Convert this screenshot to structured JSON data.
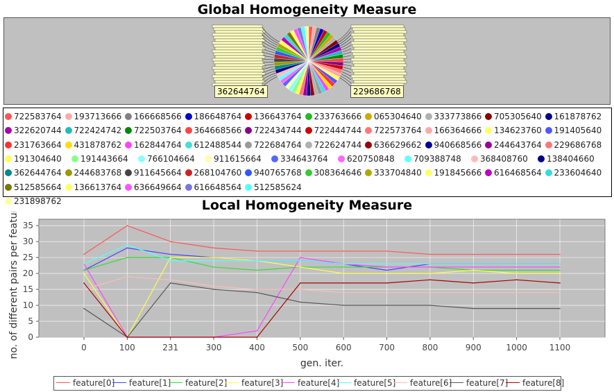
{
  "global": {
    "title": "Global Homogeneity Measure",
    "label_left": "362644764",
    "label_right": "229686768"
  },
  "legend_items": [
    {
      "label": "722583764",
      "color": "#ff5555"
    },
    {
      "label": "193713666",
      "color": "#ffaaaa"
    },
    {
      "label": "166668566",
      "color": "#808080"
    },
    {
      "label": "186648764",
      "color": "#0000cc"
    },
    {
      "label": "136643764",
      "color": "#cc0000"
    },
    {
      "label": "233763666",
      "color": "#22bb22"
    },
    {
      "label": "065304640",
      "color": "#ccaa00"
    },
    {
      "label": "333773866",
      "color": "#b0b0b0"
    },
    {
      "label": "705305640",
      "color": "#880000"
    },
    {
      "label": "161878762",
      "color": "#000088"
    },
    {
      "label": "322620744",
      "color": "#aa00aa"
    },
    {
      "label": "722424742",
      "color": "#22bbbb"
    },
    {
      "label": "722503764",
      "color": "#008800"
    },
    {
      "label": "364668566",
      "color": "#ff4444"
    },
    {
      "label": "722434744",
      "color": "#880088"
    },
    {
      "label": "722444744",
      "color": "#cc0000"
    },
    {
      "label": "722573764",
      "color": "#ff7777"
    },
    {
      "label": "166364666",
      "color": "#ffaaaa"
    },
    {
      "label": "134623760",
      "color": "#ffff66"
    },
    {
      "label": "191405640",
      "color": "#5555ff"
    },
    {
      "label": "231763664",
      "color": "#ff3333"
    },
    {
      "label": "431878762",
      "color": "#ffdd00"
    },
    {
      "label": "162844764",
      "color": "#ff44ff"
    },
    {
      "label": "612488544",
      "color": "#44dddd"
    },
    {
      "label": "722684764",
      "color": "#999999"
    },
    {
      "label": "722624744",
      "color": "#b0b0b0"
    },
    {
      "label": "636629662",
      "color": "#990000"
    },
    {
      "label": "940668566",
      "color": "#000099"
    },
    {
      "label": "244643764",
      "color": "#990099"
    },
    {
      "label": "229686768",
      "color": "#ff7777"
    },
    {
      "label": "191304640",
      "color": "#ffff55"
    },
    {
      "label": "191443664",
      "color": "#88ff88"
    },
    {
      "label": "766104664",
      "color": "#88ffff"
    },
    {
      "label": "911615664",
      "color": "#ffffaa"
    },
    {
      "label": "334643764",
      "color": "#5566ff"
    },
    {
      "label": "620750848",
      "color": "#ff66ff"
    },
    {
      "label": "709388748",
      "color": "#66ffff"
    },
    {
      "label": "368408760",
      "color": "#ffbbbb"
    },
    {
      "label": "138404660",
      "color": "#000088"
    },
    {
      "label": "362644764",
      "color": "#008888"
    },
    {
      "label": "244683768",
      "color": "#999900"
    },
    {
      "label": "911645664",
      "color": "#444444"
    },
    {
      "label": "268104760",
      "color": "#cc2222"
    },
    {
      "label": "940765768",
      "color": "#3355ff"
    },
    {
      "label": "308364646",
      "color": "#33cc33"
    },
    {
      "label": "333704840",
      "color": "#aaaa00"
    },
    {
      "label": "191845666",
      "color": "#ffff66"
    },
    {
      "label": "616468564",
      "color": "#bb00bb"
    },
    {
      "label": "233604640",
      "color": "#33dddd"
    },
    {
      "label": "512585664",
      "color": "#777700"
    },
    {
      "label": "136613764",
      "color": "#ffff66"
    },
    {
      "label": "636649664",
      "color": "#ff55ff"
    },
    {
      "label": "616648564",
      "color": "#7777dd"
    },
    {
      "label": "512585624",
      "color": "#55ffff"
    },
    {
      "label": "231898762",
      "color": "#ffff99"
    }
  ],
  "chart_data": {
    "type": "line",
    "title": "Local Homogeneity Measure",
    "xlabel": "gen. iter.",
    "ylabel": "no. of different pairs per feature",
    "categories": [
      "0",
      "100",
      "231",
      "300",
      "400",
      "500",
      "600",
      "700",
      "800",
      "900",
      "1000",
      "1100"
    ],
    "ylim": [
      0,
      37
    ],
    "yticks": [
      0,
      5,
      10,
      15,
      20,
      25,
      30,
      35
    ],
    "grid": true,
    "legend_position": "bottom",
    "series": [
      {
        "name": "feature[0]",
        "color": "#ff5555",
        "values": [
          26,
          35,
          30,
          28,
          27,
          27,
          27,
          27,
          26,
          26,
          26,
          26
        ]
      },
      {
        "name": "feature[1]",
        "color": "#4444ff",
        "values": [
          21,
          28,
          26,
          25,
          24,
          24,
          23,
          21,
          23,
          23,
          23,
          23
        ]
      },
      {
        "name": "feature[2]",
        "color": "#33dd33",
        "values": [
          21,
          25,
          25,
          22,
          21,
          22,
          22,
          22,
          22,
          21,
          21,
          21
        ]
      },
      {
        "name": "feature[3]",
        "color": "#ffff44",
        "values": [
          20,
          0,
          25,
          25,
          24,
          22,
          20,
          20,
          20,
          21,
          20,
          20
        ]
      },
      {
        "name": "feature[4]",
        "color": "#ff44ff",
        "values": [
          23,
          0,
          0,
          0,
          2,
          25,
          23,
          22,
          22,
          22,
          22,
          22
        ]
      },
      {
        "name": "feature[5]",
        "color": "#55ffff",
        "values": [
          23,
          29,
          24,
          24,
          24,
          24,
          23,
          23,
          23,
          23,
          23,
          23
        ]
      },
      {
        "name": "feature[6]",
        "color": "#ffbbbb",
        "values": [
          15,
          19,
          18,
          16,
          15,
          15,
          14,
          14,
          14,
          14,
          14,
          14
        ]
      },
      {
        "name": "feature[7]",
        "color": "#555555",
        "values": [
          9,
          0,
          17,
          15,
          14,
          11,
          10,
          10,
          10,
          9,
          9,
          9
        ]
      },
      {
        "name": "feature[8]",
        "color": "#aa0000",
        "values": [
          17,
          0,
          0,
          0,
          0,
          17,
          17,
          17,
          18,
          17,
          18,
          17
        ]
      }
    ]
  }
}
